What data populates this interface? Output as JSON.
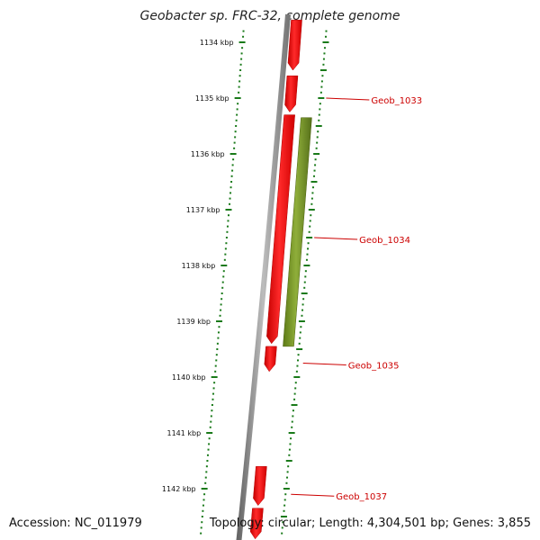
{
  "title": "Geobacter sp. FRC-32, complete genome",
  "accession_label": "Accession: NC_011979",
  "topology_label": "Topology: circular; Length: 4,304,501 bp; Genes: 3,855",
  "colors": {
    "forward_gene": "#ff0000",
    "reverse_gene": "#6b8e23",
    "backbone": "#808080",
    "tick": "#1a7a1a",
    "gene_label": "#cc0000"
  },
  "scale": {
    "unit": "kbp",
    "ticks": [
      {
        "kbp": 1134,
        "label": "1134 kbp"
      },
      {
        "kbp": 1135,
        "label": "1135 kbp"
      },
      {
        "kbp": 1136,
        "label": "1136 kbp"
      },
      {
        "kbp": 1137,
        "label": "1137 kbp"
      },
      {
        "kbp": 1138,
        "label": "1138 kbp"
      },
      {
        "kbp": 1139,
        "label": "1139 kbp"
      },
      {
        "kbp": 1140,
        "label": "1140 kbp"
      },
      {
        "kbp": 1141,
        "label": "1141 kbp"
      },
      {
        "kbp": 1142,
        "label": "1142 kbp"
      }
    ]
  },
  "genes": [
    {
      "name": "",
      "strand": "forward",
      "start_kbp": 1133.6,
      "end_kbp": 1134.5
    },
    {
      "name": "Geob_1033",
      "strand": "forward",
      "start_kbp": 1134.6,
      "end_kbp": 1135.25
    },
    {
      "name": "Geob_1034",
      "strand": "forward",
      "start_kbp": 1135.3,
      "end_kbp": 1139.4
    },
    {
      "name": "Geob_1034",
      "strand": "reverse",
      "start_kbp": 1135.35,
      "end_kbp": 1139.45
    },
    {
      "name": "Geob_1035",
      "strand": "forward",
      "start_kbp": 1139.45,
      "end_kbp": 1139.9
    },
    {
      "name": "",
      "strand": "forward",
      "start_kbp": 1141.6,
      "end_kbp": 1142.3
    },
    {
      "name": "Geob_1037",
      "strand": "forward",
      "start_kbp": 1142.35,
      "end_kbp": 1142.9
    }
  ],
  "gene_labels": [
    {
      "text": "Geob_1033",
      "kbp": 1135.0
    },
    {
      "text": "Geob_1034",
      "kbp": 1137.5
    },
    {
      "text": "Geob_1035",
      "kbp": 1139.75
    },
    {
      "text": "Geob_1037",
      "kbp": 1142.1
    }
  ]
}
